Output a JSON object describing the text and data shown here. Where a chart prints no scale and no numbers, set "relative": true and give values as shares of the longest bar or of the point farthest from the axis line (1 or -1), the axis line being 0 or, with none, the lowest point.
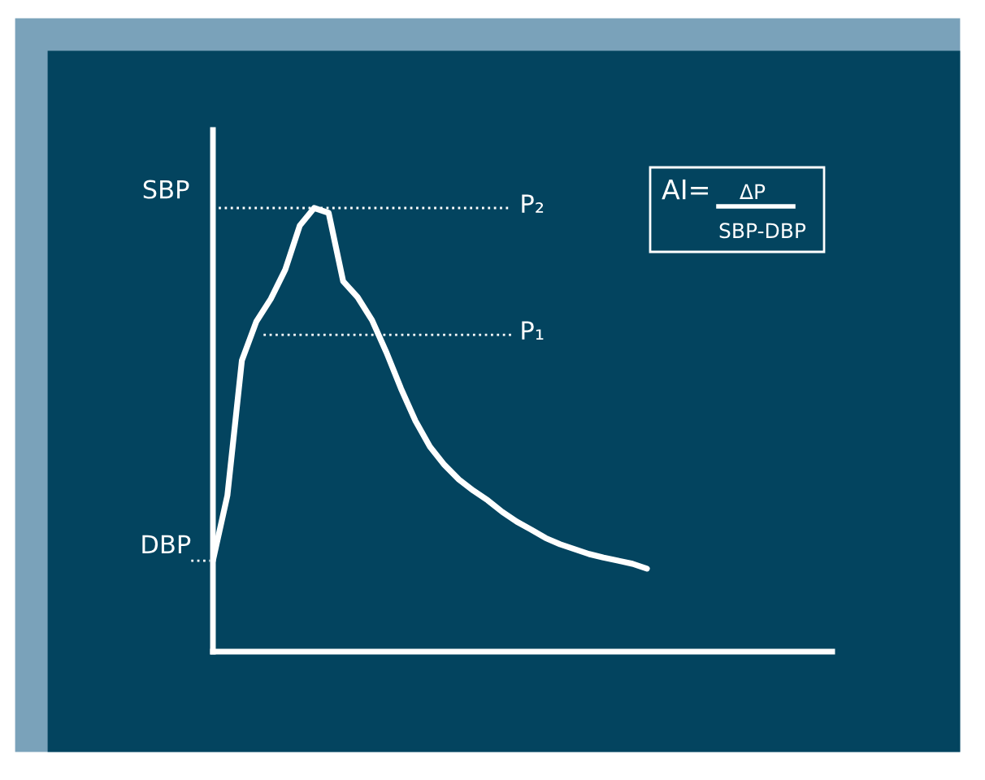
{
  "chart_data": {
    "type": "line",
    "relative": true,
    "categories": [
      null,
      null,
      null,
      null,
      null,
      null,
      null,
      null,
      null,
      null,
      null,
      null,
      null,
      null,
      null,
      null,
      null,
      null,
      null,
      null,
      null,
      null,
      null,
      null,
      null,
      null,
      null,
      null,
      null,
      null,
      null
    ],
    "series": [
      {
        "color": "#ffffff",
        "values": [
          0.205,
          0.352,
          0.656,
          0.744,
          0.795,
          0.861,
          0.96,
          1.0,
          0.989,
          0.835,
          0.799,
          0.747,
          0.674,
          0.593,
          0.52,
          0.462,
          0.421,
          0.388,
          0.363,
          0.341,
          0.315,
          0.293,
          0.275,
          0.256,
          0.242,
          0.231,
          0.22,
          0.212,
          0.205,
          0.198,
          0.187
        ]
      }
    ],
    "ref_lines": [
      {
        "axis": "y",
        "value": 1.0,
        "label": "SBP",
        "color": "#ffffff",
        "line_style": "dotted"
      },
      {
        "axis": "y",
        "value": 0.714,
        "label": "P₁",
        "color": "#ffffff",
        "line_style": "dotted"
      },
      {
        "axis": "y",
        "value": 0.205,
        "label": "DBP",
        "color": "#ffffff",
        "line_style": "dotted"
      }
    ],
    "annotations": [
      "P₂",
      "AI=",
      "ΔP",
      "SBP-DBP"
    ],
    "marker": "none",
    "line_style": "solid"
  }
}
